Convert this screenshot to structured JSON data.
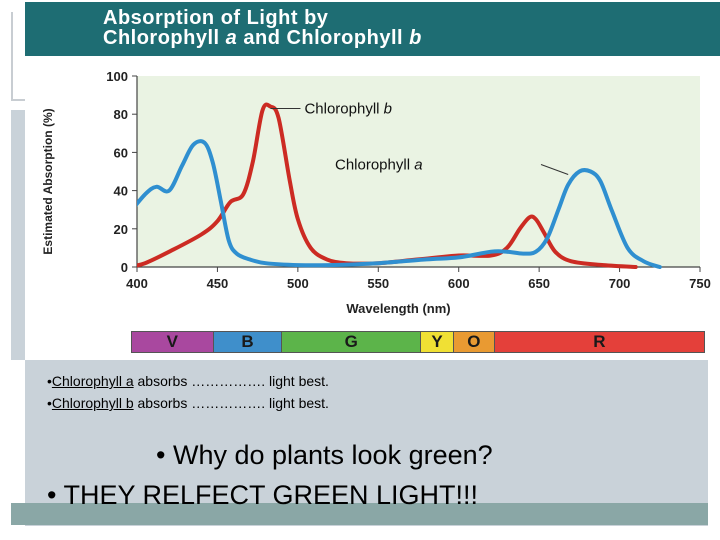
{
  "slide": {
    "title_line1": "Absorption of Light by",
    "title_line2_pre": "Chlorophyll ",
    "title_line2_a": "a",
    "title_line2_mid": " and Chlorophyll ",
    "title_line2_b": "b",
    "q1_bullet": "•",
    "q1_subject": "Chlorophyll a",
    "q1_rest": " absorbs ……………. light best.",
    "q2_bullet": "•",
    "q2_subject": "Chlorophyll b",
    "q2_rest": " absorbs ……………. light best.",
    "question": "• Why do plants look green?",
    "answer": "• THEY RELFECT GREEN LIGHT!!!"
  },
  "colors": {
    "title_bg": "#1e6d73",
    "plot_bg": "#eaf3e3",
    "chlorophyll_a": "#2f8fd0",
    "chlorophyll_b": "#cc2b23"
  },
  "chart_data": {
    "type": "line",
    "xlabel": "Wavelength (nm)",
    "ylabel": "Estimated Absorption (%)",
    "xlim": [
      400,
      750
    ],
    "ylim": [
      0,
      100
    ],
    "xticks": [
      400,
      450,
      500,
      550,
      600,
      650,
      700,
      750
    ],
    "yticks": [
      0,
      20,
      40,
      60,
      80,
      100
    ],
    "grid": false,
    "series": [
      {
        "name": "Chlorophyll a",
        "color": "#2f8fd0",
        "x": [
          395,
          405,
          412,
          420,
          428,
          435,
          442,
          447,
          452,
          457,
          462,
          470,
          480,
          500,
          520,
          550,
          580,
          600,
          620,
          630,
          640,
          648,
          655,
          662,
          668,
          675,
          682,
          688,
          695,
          705,
          715,
          725
        ],
        "y": [
          28,
          38,
          42,
          40,
          53,
          64,
          65,
          55,
          35,
          14,
          7,
          4,
          2,
          1,
          1,
          2,
          4,
          5,
          8,
          8,
          7,
          8,
          15,
          30,
          43,
          50,
          50,
          45,
          30,
          10,
          3,
          0
        ]
      },
      {
        "name": "Chlorophyll b",
        "color": "#cc2b23",
        "x": [
          395,
          405,
          420,
          440,
          450,
          458,
          466,
          472,
          478,
          483,
          488,
          495,
          500,
          508,
          518,
          530,
          550,
          575,
          600,
          620,
          630,
          638,
          644,
          648,
          653,
          660,
          670,
          690,
          710
        ],
        "y": [
          0,
          2,
          8,
          17,
          24,
          34,
          38,
          55,
          82,
          84,
          78,
          45,
          25,
          10,
          4,
          2,
          2,
          4,
          6,
          6,
          10,
          20,
          26,
          25,
          18,
          8,
          3,
          1,
          0
        ]
      }
    ],
    "annotations": [
      {
        "text_pre": "Chlorophyll ",
        "text_it": "b",
        "x": 478,
        "y": 84
      },
      {
        "text_pre": "Chlorophyll ",
        "text_it": "a",
        "x": 678,
        "y": 50
      }
    ],
    "spectrum_bands": [
      {
        "label": "V",
        "color": "#a9489f",
        "from": 400,
        "to": 450
      },
      {
        "label": "B",
        "color": "#3f8fcb",
        "from": 450,
        "to": 492
      },
      {
        "label": "G",
        "color": "#5cb44a",
        "from": 492,
        "to": 577
      },
      {
        "label": "Y",
        "color": "#f0e034",
        "from": 577,
        "to": 597
      },
      {
        "label": "O",
        "color": "#e99a32",
        "from": 597,
        "to": 622
      },
      {
        "label": "R",
        "color": "#e4403a",
        "from": 622,
        "to": 750
      }
    ]
  }
}
